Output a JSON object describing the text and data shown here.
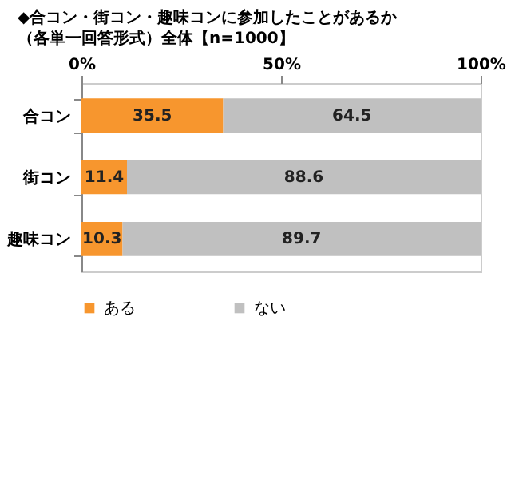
{
  "chart_data": {
    "type": "bar",
    "orientation": "horizontal",
    "stacked": true,
    "title": "◆合コン・街コン・趣味コンに参加したことがあるか",
    "subtitle": "（各単一回答形式）全体【n=1000】",
    "categories": [
      "合コン",
      "街コン",
      "趣味コン"
    ],
    "series": [
      {
        "name": "ある",
        "color": "#f7962e",
        "values": [
          35.5,
          11.4,
          10.3
        ]
      },
      {
        "name": "ない",
        "color": "#c0c0c0",
        "values": [
          64.5,
          88.6,
          89.7
        ]
      }
    ],
    "xlim": [
      0,
      100
    ],
    "xticks": [
      {
        "value": 0,
        "label": "0%"
      },
      {
        "value": 50,
        "label": "50%"
      },
      {
        "value": 100,
        "label": "100%"
      }
    ],
    "data_labels": true,
    "legend": "bottom",
    "grid": false
  }
}
